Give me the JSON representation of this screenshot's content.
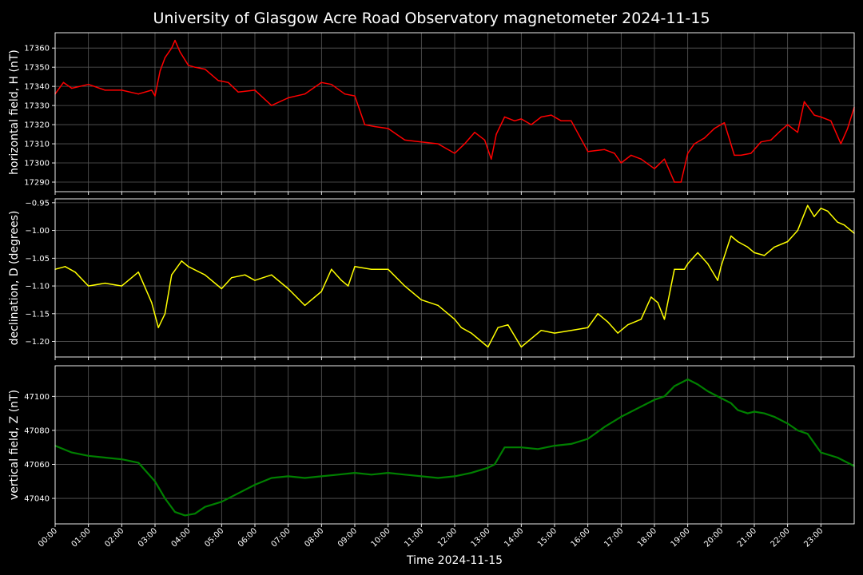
{
  "chart_data": {
    "type": "line",
    "title": "University of Glasgow Acre Road Observatory magnetometer 2024-11-15",
    "xlabel": "Time 2024-11-15",
    "x_ticks": [
      "00:00",
      "01:00",
      "02:00",
      "03:00",
      "04:00",
      "05:00",
      "06:00",
      "07:00",
      "08:00",
      "09:00",
      "10:00",
      "11:00",
      "12:00",
      "13:00",
      "14:00",
      "15:00",
      "16:00",
      "17:00",
      "18:00",
      "19:00",
      "20:00",
      "21:00",
      "22:00",
      "23:00"
    ],
    "x_range_hours": [
      0,
      24
    ],
    "grid": true,
    "panels": [
      {
        "ylabel": "horizontal field, H (nT)",
        "color": "#ff0000",
        "ylim": [
          17285,
          17368
        ],
        "yticks": [
          17290,
          17300,
          17310,
          17320,
          17330,
          17340,
          17350,
          17360
        ],
        "ytick_labels": [
          "17290",
          "17300",
          "17310",
          "17320",
          "17330",
          "17340",
          "17350",
          "17360"
        ],
        "hours": [
          0.0,
          0.25,
          0.5,
          1.0,
          1.5,
          2.0,
          2.5,
          2.9,
          3.0,
          3.15,
          3.3,
          3.5,
          3.6,
          3.75,
          4.0,
          4.2,
          4.5,
          4.9,
          5.2,
          5.5,
          6.0,
          6.5,
          7.0,
          7.5,
          8.0,
          8.3,
          8.7,
          9.0,
          9.3,
          9.6,
          10.0,
          10.5,
          11.0,
          11.5,
          12.0,
          12.3,
          12.6,
          12.9,
          13.1,
          13.25,
          13.5,
          13.8,
          14.0,
          14.3,
          14.6,
          14.9,
          15.2,
          15.5,
          16.0,
          16.5,
          16.8,
          17.0,
          17.3,
          17.6,
          18.0,
          18.3,
          18.6,
          18.8,
          19.0,
          19.2,
          19.5,
          19.8,
          20.1,
          20.4,
          20.6,
          20.9,
          21.2,
          21.5,
          21.8,
          22.0,
          22.3,
          22.5,
          22.8,
          23.0,
          23.3,
          23.6,
          23.8,
          24.0
        ],
        "values": [
          17336,
          17342,
          17339,
          17341,
          17338,
          17338,
          17336,
          17338,
          17335,
          17348,
          17355,
          17360,
          17364,
          17358,
          17351,
          17350,
          17349,
          17343,
          17342,
          17337,
          17338,
          17330,
          17334,
          17336,
          17342,
          17341,
          17336,
          17335,
          17320,
          17319,
          17318,
          17312,
          17311,
          17310,
          17305,
          17310,
          17316,
          17312,
          17302,
          17315,
          17324,
          17322,
          17323,
          17320,
          17324,
          17325,
          17322,
          17322,
          17306,
          17307,
          17305,
          17300,
          17304,
          17302,
          17297,
          17302,
          17290,
          17290,
          17305,
          17310,
          17313,
          17318,
          17321,
          17304,
          17304,
          17305,
          17311,
          17312,
          17317,
          17320,
          17316,
          17332,
          17325,
          17324,
          17322,
          17310,
          17318,
          17329
        ]
      },
      {
        "ylabel": "declination, D (degrees)",
        "color": "#ffff00",
        "ylim": [
          -1.228,
          -0.943
        ],
        "yticks": [
          -1.2,
          -1.15,
          -1.1,
          -1.05,
          -1.0,
          -0.95
        ],
        "ytick_labels": [
          "−1.20",
          "−1.15",
          "−1.10",
          "−1.05",
          "−1.00",
          "−0.95"
        ],
        "hours": [
          0.0,
          0.3,
          0.6,
          1.0,
          1.5,
          2.0,
          2.5,
          2.9,
          3.1,
          3.3,
          3.5,
          3.8,
          4.0,
          4.5,
          5.0,
          5.3,
          5.7,
          6.0,
          6.5,
          7.0,
          7.5,
          8.0,
          8.3,
          8.6,
          8.8,
          9.0,
          9.5,
          10.0,
          10.5,
          11.0,
          11.5,
          12.0,
          12.2,
          12.5,
          12.8,
          13.0,
          13.3,
          13.6,
          14.0,
          14.3,
          14.6,
          15.0,
          15.5,
          16.0,
          16.3,
          16.6,
          16.9,
          17.2,
          17.6,
          17.9,
          18.1,
          18.3,
          18.6,
          18.9,
          19.0,
          19.3,
          19.6,
          19.9,
          20.0,
          20.3,
          20.5,
          20.8,
          21.0,
          21.3,
          21.6,
          22.0,
          22.3,
          22.6,
          22.8,
          23.0,
          23.2,
          23.5,
          23.7,
          24.0
        ],
        "values": [
          -1.07,
          -1.065,
          -1.075,
          -1.1,
          -1.095,
          -1.1,
          -1.075,
          -1.13,
          -1.175,
          -1.15,
          -1.08,
          -1.055,
          -1.065,
          -1.08,
          -1.105,
          -1.085,
          -1.08,
          -1.09,
          -1.08,
          -1.105,
          -1.135,
          -1.11,
          -1.07,
          -1.09,
          -1.1,
          -1.065,
          -1.07,
          -1.07,
          -1.1,
          -1.125,
          -1.135,
          -1.16,
          -1.175,
          -1.185,
          -1.2,
          -1.21,
          -1.175,
          -1.17,
          -1.21,
          -1.195,
          -1.18,
          -1.185,
          -1.18,
          -1.175,
          -1.15,
          -1.165,
          -1.185,
          -1.17,
          -1.16,
          -1.12,
          -1.13,
          -1.16,
          -1.07,
          -1.07,
          -1.06,
          -1.04,
          -1.06,
          -1.09,
          -1.065,
          -1.01,
          -1.02,
          -1.03,
          -1.04,
          -1.045,
          -1.03,
          -1.02,
          -1.0,
          -0.955,
          -0.975,
          -0.96,
          -0.965,
          -0.985,
          -0.99,
          -1.005
        ]
      },
      {
        "ylabel": "vertical field, Z (nT)",
        "color": "#008000",
        "ylim": [
          47025,
          47118
        ],
        "yticks": [
          47040,
          47060,
          47080,
          47100
        ],
        "ytick_labels": [
          "47040",
          "47060",
          "47080",
          "47100"
        ],
        "hours": [
          0.0,
          0.5,
          1.0,
          1.5,
          2.0,
          2.5,
          3.0,
          3.3,
          3.6,
          3.9,
          4.2,
          4.5,
          5.0,
          5.5,
          6.0,
          6.5,
          7.0,
          7.5,
          8.0,
          8.5,
          9.0,
          9.5,
          10.0,
          10.5,
          11.0,
          11.5,
          12.0,
          12.5,
          13.0,
          13.2,
          13.5,
          14.0,
          14.5,
          15.0,
          15.5,
          16.0,
          16.5,
          17.0,
          17.5,
          18.0,
          18.3,
          18.6,
          19.0,
          19.3,
          19.6,
          20.0,
          20.3,
          20.5,
          20.8,
          21.0,
          21.3,
          21.6,
          22.0,
          22.3,
          22.6,
          23.0,
          23.5,
          24.0
        ],
        "values": [
          47071,
          47067,
          47065,
          47064,
          47063,
          47061,
          47050,
          47040,
          47032,
          47030,
          47031,
          47035,
          47038,
          47043,
          47048,
          47052,
          47053,
          47052,
          47053,
          47054,
          47055,
          47054,
          47055,
          47054,
          47053,
          47052,
          47053,
          47055,
          47058,
          47060,
          47070,
          47070,
          47069,
          47071,
          47072,
          47075,
          47082,
          47088,
          47093,
          47098,
          47100,
          47106,
          47110,
          47107,
          47103,
          47099,
          47096,
          47092,
          47090,
          47091,
          47090,
          47088,
          47084,
          47080,
          47078,
          47067,
          47064,
          47059
        ]
      }
    ]
  }
}
